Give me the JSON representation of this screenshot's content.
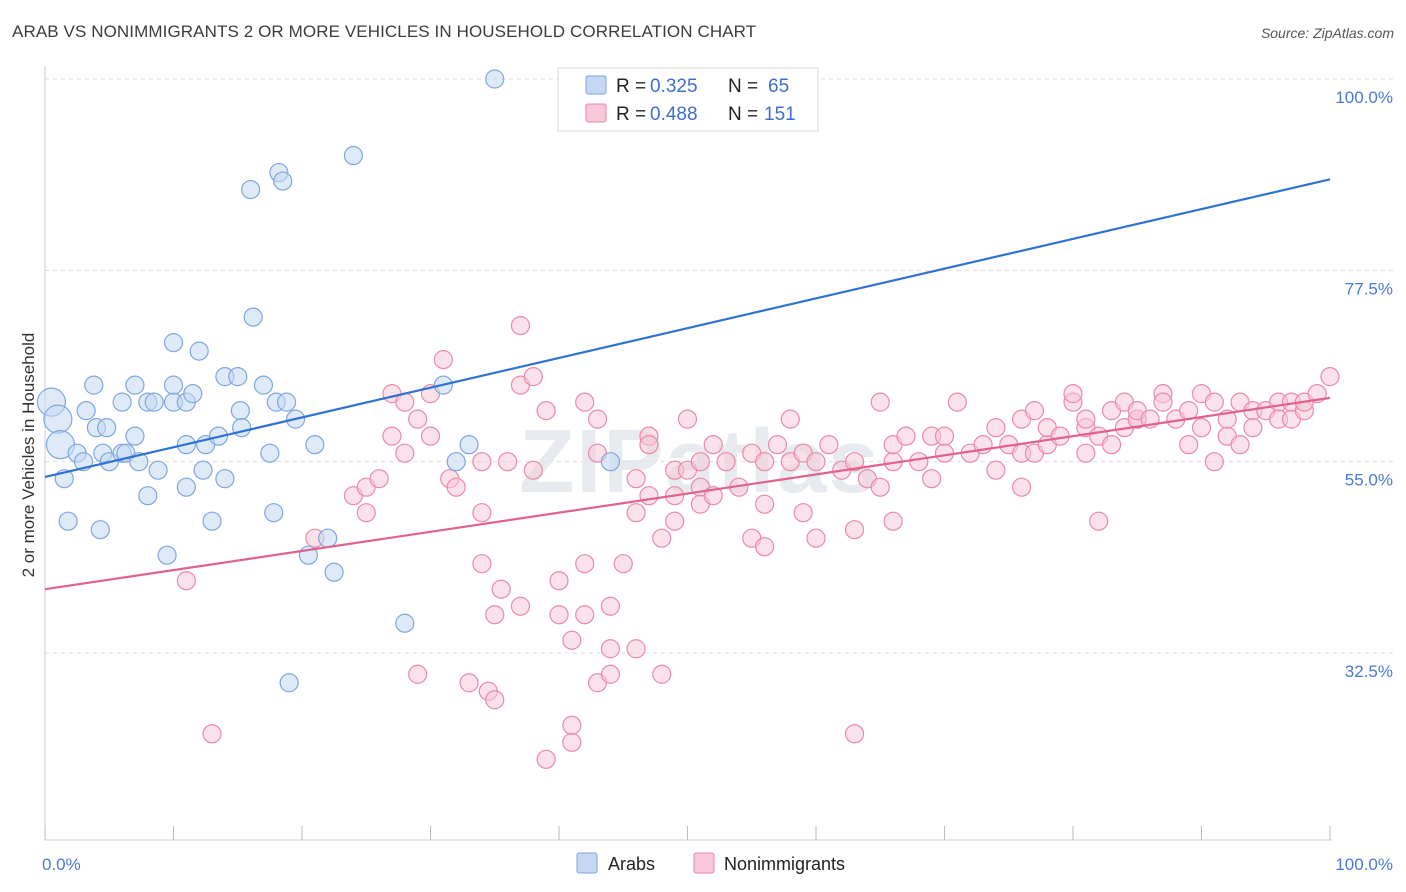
{
  "header": {
    "title": "ARAB VS NONIMMIGRANTS 2 OR MORE VEHICLES IN HOUSEHOLD CORRELATION CHART",
    "source": "Source: ZipAtlas.com"
  },
  "watermark": "ZIPatlas",
  "chart_data": {
    "type": "scatter",
    "xlabel": "",
    "ylabel": "2 or more Vehicles in Household",
    "xlim": [
      0,
      100
    ],
    "ylim": [
      13,
      101
    ],
    "x_tick_labels": [
      "0.0%",
      "100.0%"
    ],
    "y_ticks": [
      32.5,
      55.0,
      77.5,
      100.0
    ],
    "y_tick_labels": [
      "32.5%",
      "55.0%",
      "77.5%",
      "100.0%"
    ],
    "grid": "horizontal dashed",
    "legend": {
      "placement": "top-center",
      "entries": [
        {
          "r_label": "R =",
          "r_value": "0.325",
          "n_label": "N =",
          "n_value": "65"
        },
        {
          "r_label": "R =",
          "r_value": "0.488",
          "n_label": "N =",
          "n_value": "151"
        }
      ]
    },
    "series": [
      {
        "name": "Arabs",
        "color": "#7ea6e0",
        "fill": "#c5d8f3",
        "line_color": "#2e73d0",
        "trend": [
          [
            0,
            53.2
          ],
          [
            100,
            88.2
          ]
        ],
        "points": [
          [
            0.5,
            62
          ],
          [
            1,
            60
          ],
          [
            1.2,
            57
          ],
          [
            1.5,
            53
          ],
          [
            1.8,
            48
          ],
          [
            2.5,
            56
          ],
          [
            3,
            55
          ],
          [
            3.2,
            61
          ],
          [
            3.8,
            64
          ],
          [
            4,
            59
          ],
          [
            4.3,
            47
          ],
          [
            4.5,
            56
          ],
          [
            4.8,
            59
          ],
          [
            5,
            55
          ],
          [
            6,
            62
          ],
          [
            6,
            56
          ],
          [
            6.3,
            56
          ],
          [
            7,
            64
          ],
          [
            7,
            58
          ],
          [
            7.3,
            55
          ],
          [
            8,
            62
          ],
          [
            8,
            51
          ],
          [
            8.5,
            62
          ],
          [
            8.8,
            54
          ],
          [
            9.5,
            44
          ],
          [
            10,
            62
          ],
          [
            10,
            69
          ],
          [
            10,
            64
          ],
          [
            11,
            62
          ],
          [
            11.5,
            63
          ],
          [
            11,
            57
          ],
          [
            11,
            52
          ],
          [
            12,
            68
          ],
          [
            12.3,
            54
          ],
          [
            12.5,
            57
          ],
          [
            13,
            48
          ],
          [
            13.5,
            58
          ],
          [
            14,
            53
          ],
          [
            14,
            65
          ],
          [
            15,
            65
          ],
          [
            15.2,
            61
          ],
          [
            15.3,
            59
          ],
          [
            16,
            87
          ],
          [
            16.2,
            72
          ],
          [
            17,
            64
          ],
          [
            17.5,
            56
          ],
          [
            17.8,
            49
          ],
          [
            18,
            62
          ],
          [
            18.2,
            89
          ],
          [
            18.5,
            88
          ],
          [
            18.8,
            62
          ],
          [
            19,
            29
          ],
          [
            19.5,
            60
          ],
          [
            20.5,
            44
          ],
          [
            21,
            57
          ],
          [
            22,
            46
          ],
          [
            22.5,
            42
          ],
          [
            24,
            91
          ],
          [
            28,
            36
          ],
          [
            31,
            64
          ],
          [
            32,
            55
          ],
          [
            33,
            57
          ],
          [
            35,
            100
          ],
          [
            42,
            100
          ],
          [
            44,
            55
          ]
        ]
      },
      {
        "name": "Nonimmigrants",
        "color": "#e98aaa",
        "fill": "#f8c8d7",
        "line_color": "#e0628e",
        "trend": [
          [
            0,
            40.0
          ],
          [
            100,
            62.5
          ]
        ],
        "points": [
          [
            11,
            41
          ],
          [
            13,
            23
          ],
          [
            21,
            46
          ],
          [
            24,
            51
          ],
          [
            25,
            52
          ],
          [
            25,
            49
          ],
          [
            26,
            53
          ],
          [
            27,
            58
          ],
          [
            27,
            63
          ],
          [
            28,
            56
          ],
          [
            28,
            62
          ],
          [
            29,
            60
          ],
          [
            29,
            30
          ],
          [
            30,
            58
          ],
          [
            30,
            63
          ],
          [
            31,
            67
          ],
          [
            31.5,
            53
          ],
          [
            32,
            52
          ],
          [
            33,
            29
          ],
          [
            34,
            43
          ],
          [
            34,
            49
          ],
          [
            34,
            55
          ],
          [
            34.5,
            28
          ],
          [
            35,
            37
          ],
          [
            35,
            27
          ],
          [
            35.5,
            40
          ],
          [
            36,
            55
          ],
          [
            37,
            71
          ],
          [
            37,
            38
          ],
          [
            37,
            64
          ],
          [
            38,
            65
          ],
          [
            38,
            54
          ],
          [
            39,
            61
          ],
          [
            39,
            20
          ],
          [
            40,
            41
          ],
          [
            40,
            37
          ],
          [
            41,
            34
          ],
          [
            41,
            22
          ],
          [
            41,
            24
          ],
          [
            42,
            62
          ],
          [
            42,
            43
          ],
          [
            42,
            37
          ],
          [
            43,
            29
          ],
          [
            43,
            56
          ],
          [
            43,
            60
          ],
          [
            44,
            38
          ],
          [
            44,
            33
          ],
          [
            44,
            30
          ],
          [
            45,
            43
          ],
          [
            46,
            49
          ],
          [
            46,
            53
          ],
          [
            46,
            33
          ],
          [
            47,
            51
          ],
          [
            47,
            58
          ],
          [
            47,
            57
          ],
          [
            48,
            30
          ],
          [
            48,
            46
          ],
          [
            49,
            51
          ],
          [
            49,
            48
          ],
          [
            49,
            54
          ],
          [
            50,
            54
          ],
          [
            50,
            60
          ],
          [
            51,
            55
          ],
          [
            51,
            52
          ],
          [
            51,
            50
          ],
          [
            52,
            51
          ],
          [
            52,
            57
          ],
          [
            53,
            55
          ],
          [
            54,
            52
          ],
          [
            55,
            56
          ],
          [
            55,
            46
          ],
          [
            56,
            55
          ],
          [
            56,
            45
          ],
          [
            56,
            50
          ],
          [
            57,
            57
          ],
          [
            58,
            55
          ],
          [
            58,
            60
          ],
          [
            59,
            56
          ],
          [
            59,
            49
          ],
          [
            60,
            55
          ],
          [
            60,
            46
          ],
          [
            61,
            57
          ],
          [
            62,
            54
          ],
          [
            63,
            55
          ],
          [
            63,
            47
          ],
          [
            63,
            23
          ],
          [
            64,
            53
          ],
          [
            65,
            52
          ],
          [
            65,
            62
          ],
          [
            66,
            55
          ],
          [
            66,
            57
          ],
          [
            66,
            48
          ],
          [
            67,
            58
          ],
          [
            68,
            55
          ],
          [
            69,
            58
          ],
          [
            69,
            53
          ],
          [
            70,
            56
          ],
          [
            70,
            58
          ],
          [
            71,
            62
          ],
          [
            72,
            56
          ],
          [
            73,
            57
          ],
          [
            74,
            59
          ],
          [
            74,
            54
          ],
          [
            75,
            57
          ],
          [
            76,
            60
          ],
          [
            76,
            56
          ],
          [
            76,
            52
          ],
          [
            77,
            56
          ],
          [
            77,
            61
          ],
          [
            78,
            57
          ],
          [
            78,
            59
          ],
          [
            79,
            58
          ],
          [
            80,
            62
          ],
          [
            80,
            63
          ],
          [
            81,
            59
          ],
          [
            81,
            56
          ],
          [
            81,
            60
          ],
          [
            82,
            58
          ],
          [
            82,
            48
          ],
          [
            83,
            61
          ],
          [
            83,
            57
          ],
          [
            84,
            62
          ],
          [
            84,
            59
          ],
          [
            85,
            60
          ],
          [
            85,
            60
          ],
          [
            85,
            61
          ],
          [
            86,
            60
          ],
          [
            87,
            63
          ],
          [
            87,
            62
          ],
          [
            88,
            60
          ],
          [
            89,
            61
          ],
          [
            89,
            57
          ],
          [
            90,
            59
          ],
          [
            90,
            63
          ],
          [
            91,
            62
          ],
          [
            91,
            55
          ],
          [
            92,
            58
          ],
          [
            92,
            60
          ],
          [
            93,
            62
          ],
          [
            93,
            57
          ],
          [
            94,
            61
          ],
          [
            94,
            59
          ],
          [
            95,
            61
          ],
          [
            96,
            62
          ],
          [
            96,
            60
          ],
          [
            97,
            60
          ],
          [
            97,
            62
          ],
          [
            98,
            61
          ],
          [
            98,
            62
          ],
          [
            99,
            63
          ],
          [
            100,
            65
          ]
        ]
      }
    ]
  }
}
